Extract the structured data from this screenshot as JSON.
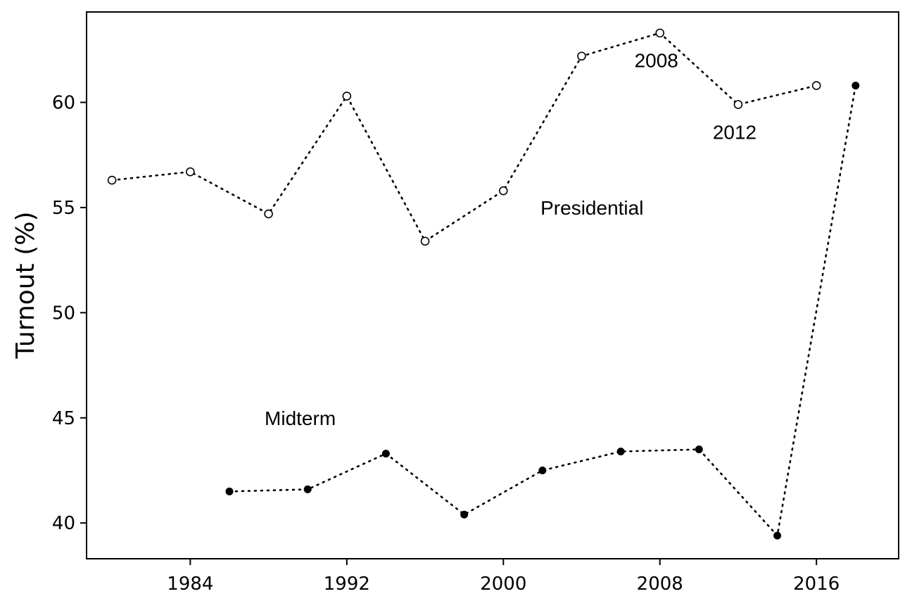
{
  "chart_data": {
    "type": "line",
    "xlabel": "",
    "ylabel": "Turnout (%)",
    "xlim": [
      1978.7,
      2020.2
    ],
    "ylim": [
      38.3,
      64.3
    ],
    "xticks": [
      1984,
      1992,
      2000,
      2008,
      2016
    ],
    "yticks": [
      40,
      45,
      50,
      55,
      60
    ],
    "grid": false,
    "legend": "none",
    "series": [
      {
        "marker": "open-circle",
        "x": [
          1980,
          1984,
          1988,
          1992,
          1996,
          2000,
          2004,
          2008,
          2012,
          2016
        ],
        "y": [
          56.3,
          56.7,
          54.7,
          60.3,
          53.4,
          55.8,
          62.2,
          63.3,
          59.9,
          60.8
        ]
      },
      {
        "marker": "filled-circle",
        "x": [
          1986,
          1990,
          1994,
          1998,
          2002,
          2006,
          2010,
          2014,
          2018
        ],
        "y": [
          41.5,
          41.6,
          43.3,
          40.4,
          42.5,
          43.4,
          43.5,
          39.4,
          60.8
        ]
      }
    ],
    "annotations": [
      {
        "text": "Presidential",
        "x": 2001.9,
        "y": 55.0
      },
      {
        "text": "Midterm",
        "x": 1987.8,
        "y": 45.0
      },
      {
        "text": "2008",
        "x": 2006.7,
        "y": 62.0
      },
      {
        "text": "2012",
        "x": 2010.7,
        "y": 58.6
      }
    ]
  }
}
